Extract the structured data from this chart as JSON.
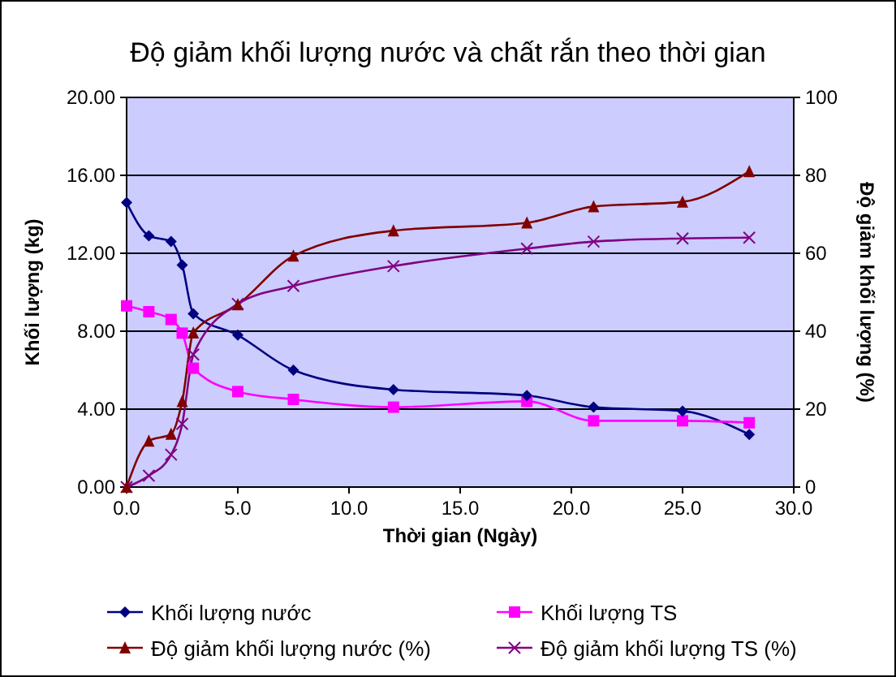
{
  "chart_data": {
    "type": "line",
    "title": "Độ giảm khối lượng nước và chất rắn theo thời gian",
    "xlabel": "Thời gian (Ngày)",
    "ylabel": "Khối lượng (kg)",
    "y2label": "Độ giảm khối lượng (%)",
    "x": [
      0,
      1,
      2,
      2.5,
      3,
      5,
      7.5,
      12,
      18,
      21,
      25,
      28
    ],
    "series": [
      {
        "name": "Khối lượng nước",
        "color": "#000080",
        "marker": "diamond",
        "values": [
          14.6,
          12.9,
          12.6,
          11.4,
          8.9,
          7.8,
          6.0,
          5.0,
          4.7,
          4.1,
          3.9,
          2.7
        ]
      },
      {
        "name": "Khối lượng TS",
        "color": "#ff00ff",
        "marker": "square",
        "values": [
          9.3,
          9.0,
          8.6,
          7.9,
          6.1,
          4.9,
          4.5,
          4.1,
          4.4,
          3.4,
          3.4,
          3.3
        ]
      },
      {
        "name": "Độ giảm khối lượng nước (%)",
        "color": "#800000",
        "marker": "triangle",
        "axis": "y2",
        "values": [
          0,
          11.8,
          13.6,
          22,
          39.6,
          46.8,
          59.3,
          65.8,
          67.8,
          72,
          73.2,
          81
        ]
      },
      {
        "name": "Độ giảm khối lượng TS (%)",
        "color": "#800080",
        "marker": "cross",
        "axis": "y2",
        "values": [
          0,
          2.9,
          8.3,
          16.2,
          34,
          47,
          51.6,
          56.7,
          61.2,
          63,
          63.8,
          64
        ]
      }
    ],
    "xlim": [
      0,
      30
    ],
    "xticks": [
      {
        "value": 0,
        "label": "0.0"
      },
      {
        "value": 5,
        "label": "5.0"
      },
      {
        "value": 10,
        "label": "10.0"
      },
      {
        "value": 15,
        "label": "15.0"
      },
      {
        "value": 20,
        "label": "20.0"
      },
      {
        "value": 25,
        "label": "25.0"
      },
      {
        "value": 30,
        "label": "30.0"
      }
    ],
    "ylim": [
      0,
      20
    ],
    "yticks": [
      {
        "value": 0,
        "label": "0.00"
      },
      {
        "value": 4,
        "label": "4.00"
      },
      {
        "value": 8,
        "label": "8.00"
      },
      {
        "value": 12,
        "label": "12.00"
      },
      {
        "value": 16,
        "label": "16.00"
      },
      {
        "value": 20,
        "label": "20.00"
      }
    ],
    "y2lim": [
      0,
      100
    ],
    "y2ticks": [
      0,
      20,
      40,
      60,
      80,
      100
    ],
    "grid": "y",
    "legend": "bottom"
  }
}
